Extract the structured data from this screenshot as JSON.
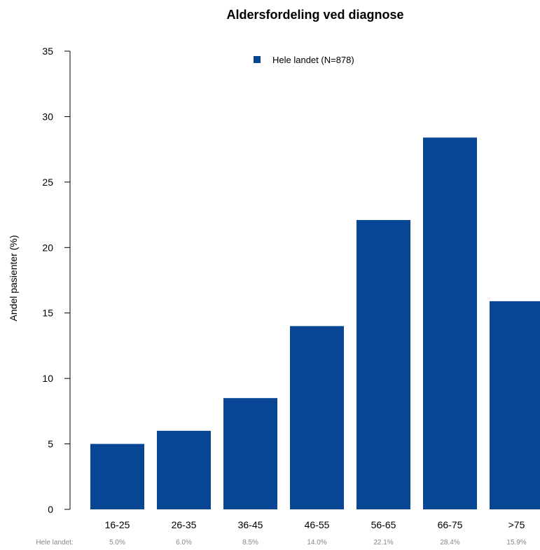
{
  "chart_data": {
    "type": "bar",
    "title": "Aldersfordeling ved diagnose",
    "ylabel": "Andel pasienter (%)",
    "xlabel": "",
    "ylim": [
      0,
      35
    ],
    "yticks": [
      0,
      5,
      10,
      15,
      20,
      25,
      30,
      35
    ],
    "grid": false,
    "legend_position": "top-center",
    "categories": [
      "16-25",
      "26-35",
      "36-45",
      "46-55",
      "56-65",
      "66-75",
      ">75"
    ],
    "series": [
      {
        "name": "Hele landet (N=878)",
        "color": "#084594",
        "values": [
          5.0,
          6.0,
          8.5,
          14.0,
          22.1,
          28.4,
          15.9
        ]
      }
    ],
    "table_row": {
      "label": "Hele landet:",
      "values": [
        "5.0%",
        "6.0%",
        "8.5%",
        "14.0%",
        "22.1%",
        "28.4%",
        "15.9%"
      ]
    }
  }
}
